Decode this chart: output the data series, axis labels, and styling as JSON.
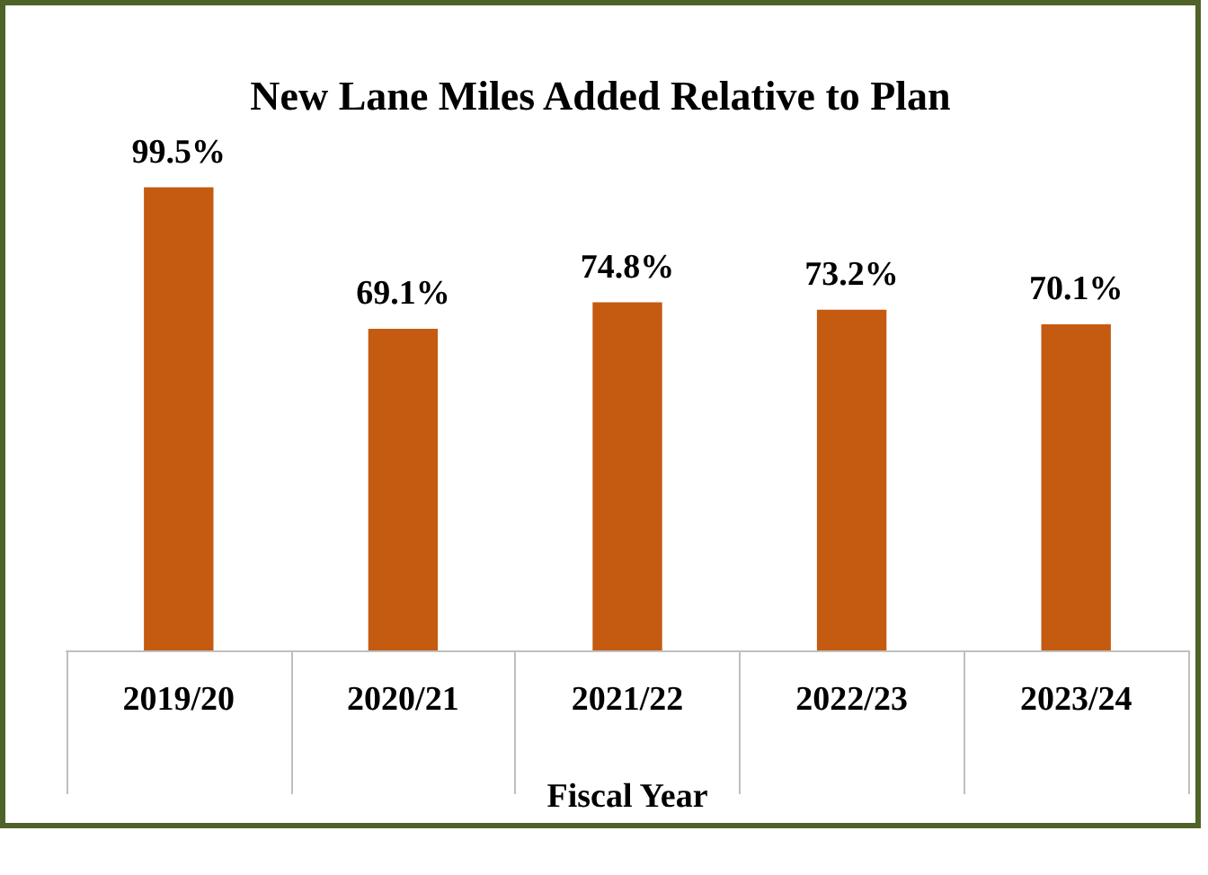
{
  "chart_data": {
    "type": "bar",
    "title": "New Lane Miles Added Relative to Plan",
    "xlabel": "Fiscal Year",
    "categories": [
      "2019/20",
      "2020/21",
      "2021/22",
      "2022/23",
      "2023/24"
    ],
    "values": [
      99.5,
      69.1,
      74.8,
      73.2,
      70.1
    ],
    "value_labels": [
      "99.5%",
      "69.1%",
      "74.8%",
      "73.2%",
      "70.1%"
    ],
    "color": "#c55a11"
  }
}
